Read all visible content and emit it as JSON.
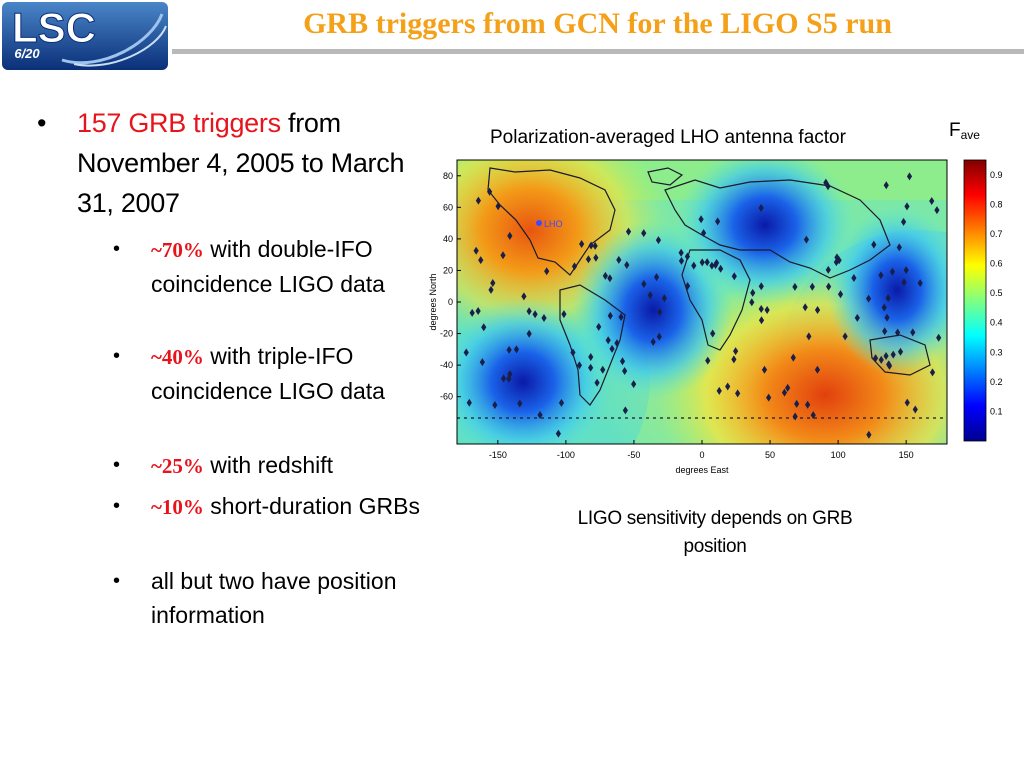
{
  "header": {
    "logo_text": "LSC",
    "slide_number": "6/20",
    "title": "GRB triggers from GCN for the LIGO S5 run"
  },
  "bullets": {
    "main": {
      "highlight": "157 GRB triggers",
      "rest": " from November 4, 2005 to March 31, 2007"
    },
    "sub": [
      {
        "pct": "~70%",
        "text": " with double-IFO coincidence LIGO data"
      },
      {
        "pct": "~40%",
        "text": " with triple-IFO coincidence LIGO data"
      },
      {
        "pct": "~25%",
        "text": " with redshift"
      },
      {
        "pct": "~10%",
        "text": " short-duration GRBs"
      },
      {
        "pct": "",
        "text": "all but two have position information"
      }
    ]
  },
  "figure": {
    "title": "Polarization-averaged LHO antenna factor",
    "colorbar_label_main": "F",
    "colorbar_label_sub": "ave",
    "caption": "LIGO sensitivity depends on GRB position",
    "site_label": "LHO"
  },
  "chart_data": {
    "type": "heatmap",
    "title": "Polarization-averaged LHO antenna factor",
    "xlabel": "degrees East",
    "ylabel": "degrees North",
    "xlim": [
      -180,
      180
    ],
    "ylim": [
      -90,
      90
    ],
    "x_ticks": [
      "-150",
      "-100",
      "-50",
      "0",
      "50",
      "100",
      "150"
    ],
    "y_ticks": [
      "80",
      "60",
      "40",
      "20",
      "0",
      "-20",
      "-40",
      "-60"
    ],
    "colorbar": {
      "label": "F_ave",
      "range": [
        0,
        0.95
      ],
      "ticks": [
        "0.9",
        "0.8",
        "0.7",
        "0.6",
        "0.5",
        "0.4",
        "0.3",
        "0.2",
        "0.1"
      ]
    },
    "colors": {
      "low": "#00008f",
      "high": "#8b0000",
      "trigger_marker": "#1a1f4a"
    },
    "site": {
      "name": "LHO",
      "lon": -119.4,
      "lat": 46.5
    },
    "grb_triggers_count": 157
  }
}
